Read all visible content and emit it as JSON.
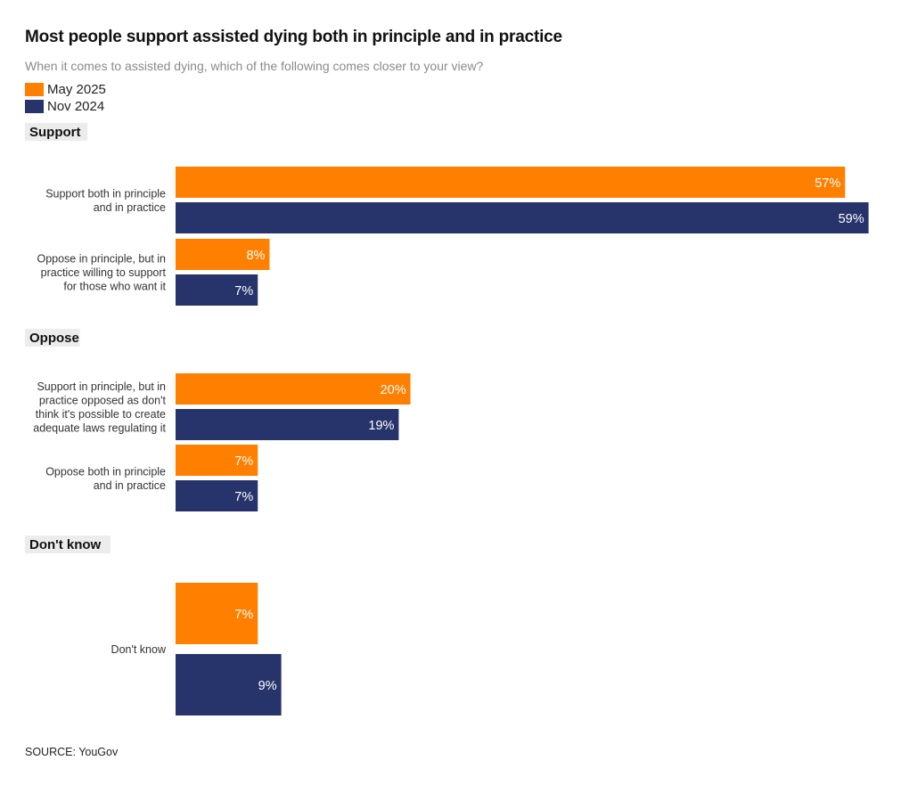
{
  "title": "Most people support assisted dying both in principle and in practice",
  "subtitle": "When it comes to assisted dying, which of the following comes closer to your view?",
  "source": "SOURCE: YouGov",
  "colors": {
    "may2025": "#ff7f00",
    "nov2024": "#27346b",
    "group_bg": "#ececec"
  },
  "legend": [
    {
      "label": "May 2025",
      "color": "#ff7f00"
    },
    {
      "label": "Nov 2024",
      "color": "#27346b"
    }
  ],
  "chart_data": {
    "type": "bar",
    "orientation": "horizontal",
    "title": "Most people support assisted dying both in principle and in practice",
    "xlim": [
      0,
      60
    ],
    "unit": "%",
    "series": [
      {
        "name": "May 2025",
        "values": [
          57,
          8,
          20,
          7,
          7
        ]
      },
      {
        "name": "Nov 2024",
        "values": [
          59,
          7,
          19,
          7,
          9
        ]
      }
    ],
    "groups": [
      {
        "name": "Support",
        "categories": [
          {
            "label_lines": [
              "Support both in principle",
              "and in practice"
            ],
            "may2025": 57,
            "nov2024": 59
          },
          {
            "label_lines": [
              "Oppose in principle, but in",
              "practice willing to support",
              "for those who want it"
            ],
            "may2025": 8,
            "nov2024": 7
          }
        ]
      },
      {
        "name": "Oppose",
        "categories": [
          {
            "label_lines": [
              "Support in principle, but in",
              "practice opposed as don't",
              "think it's possible to create",
              "adequate laws regulating it"
            ],
            "may2025": 20,
            "nov2024": 19
          },
          {
            "label_lines": [
              "Oppose both in principle",
              "and in practice"
            ],
            "may2025": 7,
            "nov2024": 7
          }
        ]
      },
      {
        "name": "Don't know",
        "categories": [
          {
            "label_lines": [
              "Don't know"
            ],
            "may2025": 7,
            "nov2024": 9
          }
        ]
      }
    ]
  }
}
